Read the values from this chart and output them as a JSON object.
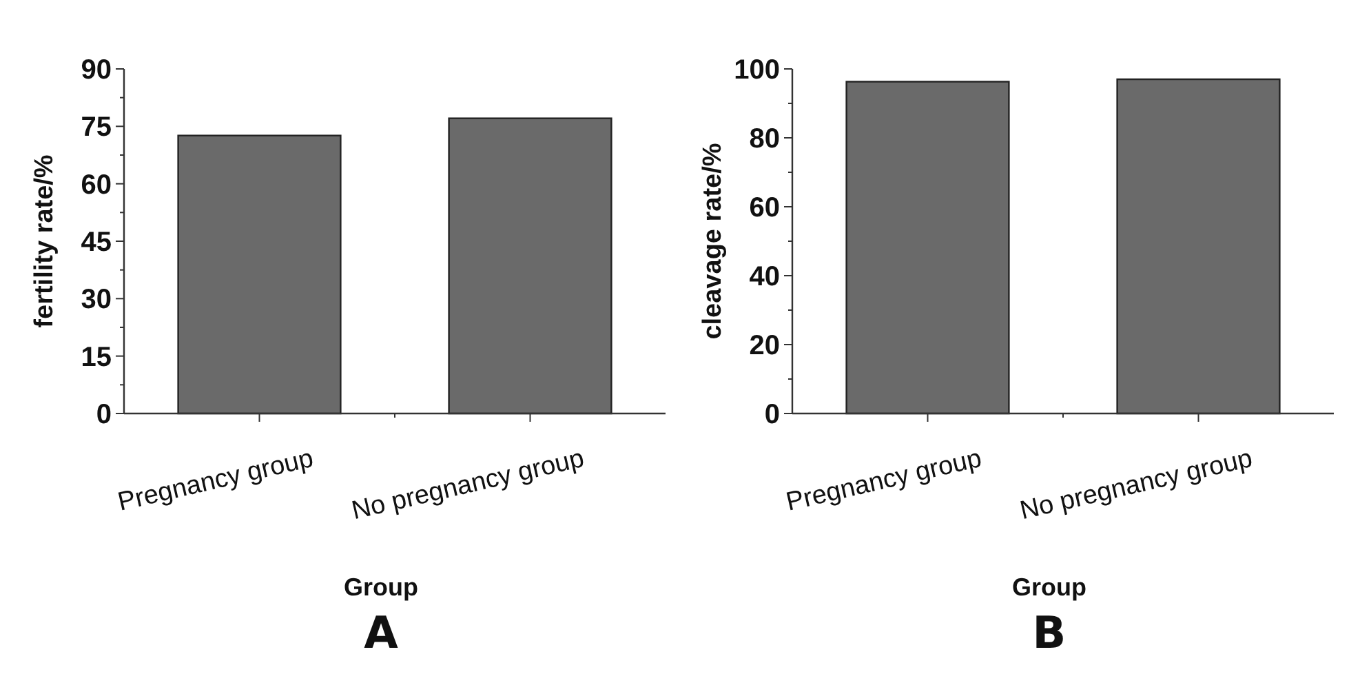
{
  "chart_data": [
    {
      "type": "bar",
      "categories": [
        "Pregnancy group",
        "No pregnancy group"
      ],
      "values": [
        72.6,
        77.1
      ],
      "color": "#6a6a6a",
      "xlabel": "Group",
      "ylabel": "fertility rate/%",
      "ylim": [
        0,
        90
      ],
      "yticks": [
        0,
        {
          "value": 7.5,
          "label": null
        },
        15,
        {
          "value": 22.5,
          "label": null
        },
        30,
        {
          "value": 37.5,
          "label": null
        },
        45,
        {
          "value": 52.5,
          "label": null
        },
        60,
        {
          "value": 67.5,
          "label": null
        },
        75,
        {
          "value": 82.5,
          "label": null
        },
        90
      ],
      "grid": false,
      "annotations": [
        "A"
      ]
    },
    {
      "type": "bar",
      "categories": [
        "Pregnancy group",
        "No pregnancy group"
      ],
      "values": [
        96.3,
        97.0
      ],
      "color": "#6a6a6a",
      "xlabel": "Group",
      "ylabel": "cleavage rate/%",
      "ylim": [
        0,
        100
      ],
      "yticks": [
        0,
        {
          "value": 10,
          "label": null
        },
        20,
        {
          "value": 30,
          "label": null
        },
        40,
        {
          "value": 50,
          "label": null
        },
        60,
        {
          "value": 70,
          "label": null
        },
        80,
        {
          "value": 90,
          "label": null
        },
        100
      ],
      "grid": false,
      "annotations": [
        "B"
      ]
    }
  ]
}
